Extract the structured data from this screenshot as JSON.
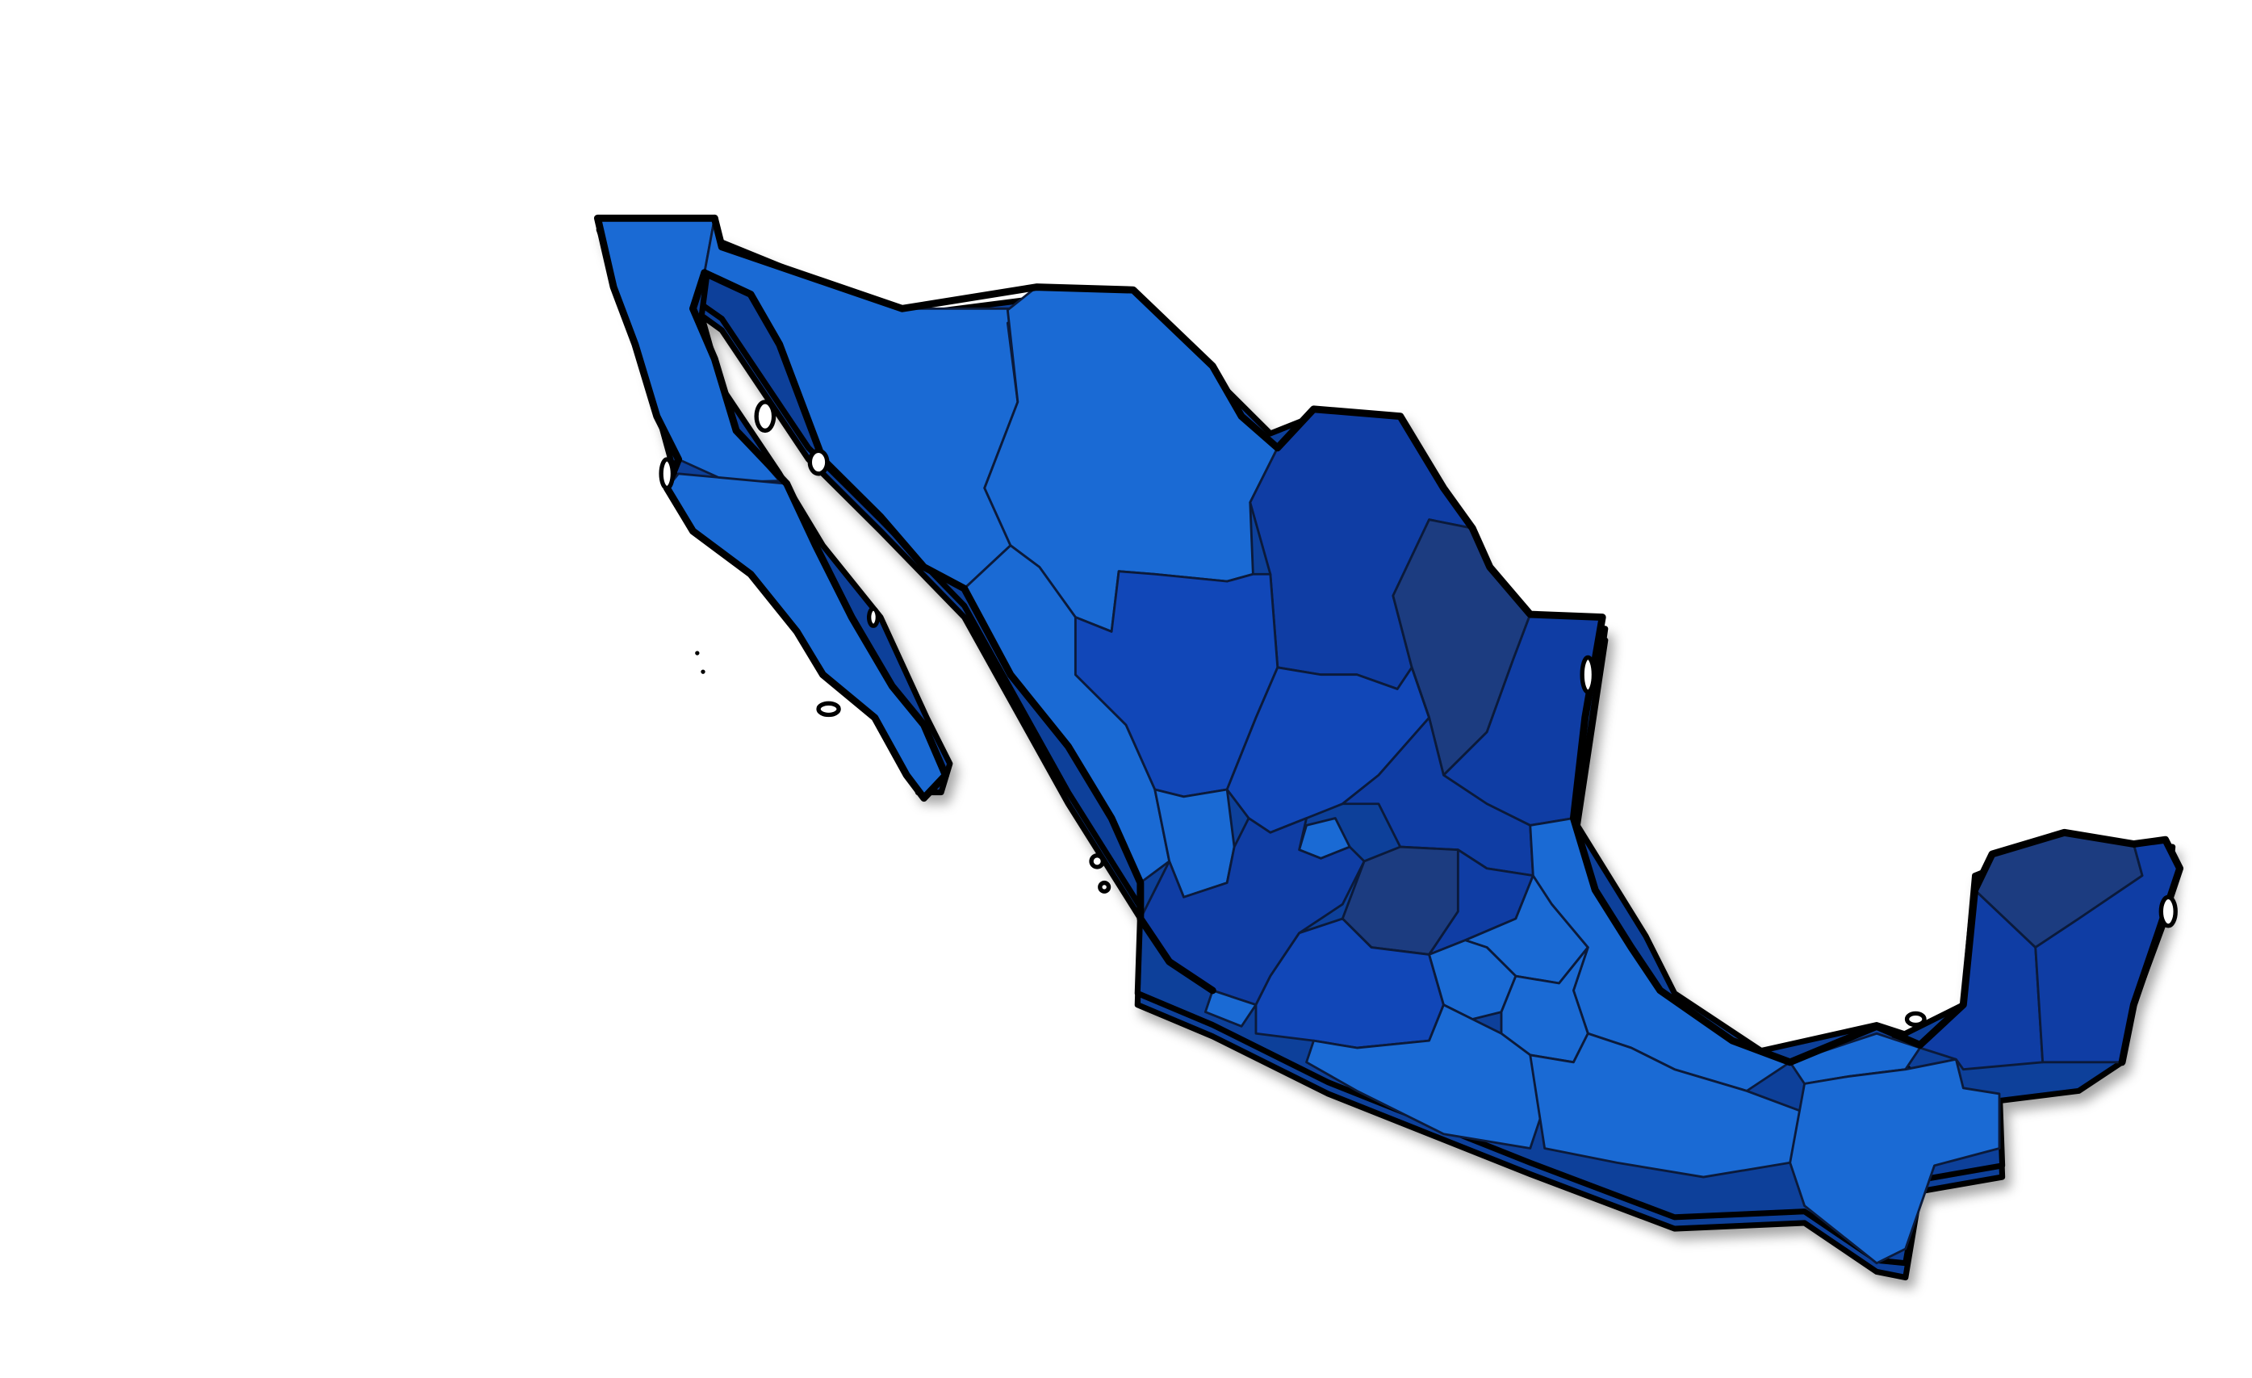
{
  "map": {
    "type": "choropleth",
    "region": "Mexico",
    "labels_visible": false,
    "palette": {
      "light": "#1a6ad4",
      "medium": "#1147b8",
      "dark": "#0f3da4",
      "darkest": "#1c3c80",
      "extrusion": "#0d3f9a",
      "outline": "#000000",
      "background": "#ffffff"
    },
    "shading_levels": [
      "light",
      "medium",
      "dark",
      "darkest"
    ]
  }
}
